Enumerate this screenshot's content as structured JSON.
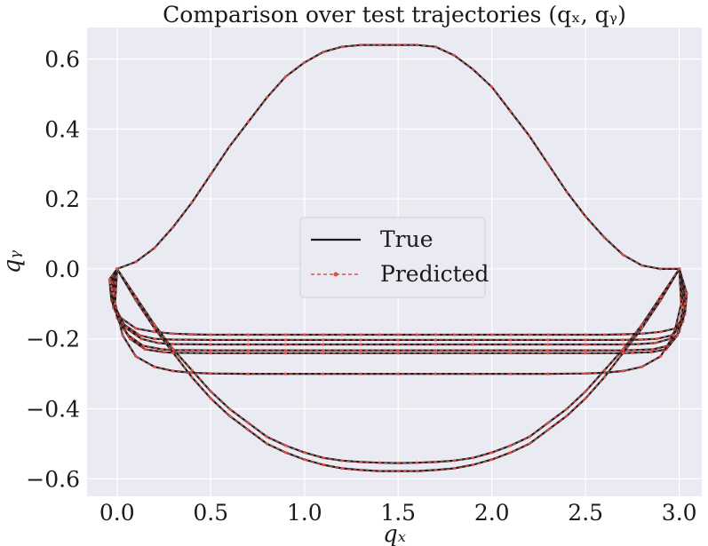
{
  "chart_data": {
    "type": "line",
    "title": "Comparison over test trajectories (qₓ, qᵧ)",
    "xlabel": "qₓ",
    "ylabel": "qᵧ",
    "xlim": [
      -0.16,
      3.12
    ],
    "ylim": [
      -0.65,
      0.69
    ],
    "xticks": [
      0.0,
      0.5,
      1.0,
      1.5,
      2.0,
      2.5,
      3.0
    ],
    "xtick_labels": [
      "0.0",
      "0.5",
      "1.0",
      "1.5",
      "2.0",
      "2.5",
      "3.0"
    ],
    "yticks": [
      0.6,
      0.4,
      0.2,
      0.0,
      -0.2,
      -0.4,
      -0.6
    ],
    "ytick_labels": [
      "0.6",
      "0.4",
      "0.2",
      "0.0",
      "−0.2",
      "−0.4",
      "−0.6"
    ],
    "grid": true,
    "legend_position": "center",
    "legend": [
      {
        "label": "True",
        "style": "solid",
        "color": "#1a1a1a"
      },
      {
        "label": "Predicted",
        "style": "dashed-marker",
        "color": "#d9534f"
      }
    ],
    "colors": {
      "background": "#eaeaf2",
      "grid": "#ffffff",
      "true": "#1a1a1a",
      "predicted": "#d9534f"
    },
    "series": [
      {
        "x": [
          0.0,
          0.1,
          0.2,
          0.3,
          0.4,
          0.5,
          0.6,
          0.7,
          0.8,
          0.9,
          1.0,
          1.1,
          1.2,
          1.3,
          1.4,
          1.5,
          1.6,
          1.7,
          1.8,
          1.9,
          2.0,
          2.1,
          2.2,
          2.3,
          2.4,
          2.5,
          2.6,
          2.7,
          2.8,
          2.9,
          3.0
        ],
        "y": [
          0.0,
          0.02,
          0.06,
          0.12,
          0.19,
          0.27,
          0.35,
          0.42,
          0.49,
          0.55,
          0.59,
          0.62,
          0.635,
          0.64,
          0.64,
          0.64,
          0.64,
          0.635,
          0.61,
          0.57,
          0.52,
          0.45,
          0.38,
          0.3,
          0.22,
          0.15,
          0.09,
          0.04,
          0.01,
          0.0,
          0.0
        ]
      },
      {
        "x": [
          0.0,
          -0.04,
          -0.03,
          0.02,
          0.1,
          0.2,
          0.3,
          0.4,
          0.5,
          0.6,
          0.7,
          0.8,
          0.9,
          1.0,
          1.1,
          1.2,
          1.3,
          1.4,
          1.5,
          1.6,
          1.7,
          1.8,
          1.9,
          2.0,
          2.1,
          2.2,
          2.3,
          2.4,
          2.5,
          2.6,
          2.7,
          2.8,
          2.9,
          2.98,
          3.03,
          3.04,
          3.0
        ],
        "y": [
          0.0,
          -0.03,
          -0.09,
          -0.14,
          -0.17,
          -0.18,
          -0.185,
          -0.187,
          -0.188,
          -0.188,
          -0.188,
          -0.188,
          -0.188,
          -0.188,
          -0.188,
          -0.188,
          -0.188,
          -0.188,
          -0.188,
          -0.188,
          -0.188,
          -0.188,
          -0.188,
          -0.188,
          -0.188,
          -0.188,
          -0.188,
          -0.188,
          -0.188,
          -0.188,
          -0.187,
          -0.185,
          -0.18,
          -0.17,
          -0.13,
          -0.07,
          0.0
        ]
      },
      {
        "x": [
          0.0,
          -0.035,
          -0.02,
          0.04,
          0.12,
          0.2,
          0.3,
          0.5,
          0.7,
          0.9,
          1.1,
          1.3,
          1.5,
          1.7,
          1.9,
          2.1,
          2.3,
          2.5,
          2.7,
          2.8,
          2.88,
          2.96,
          3.02,
          3.03,
          3.0
        ],
        "y": [
          0.0,
          -0.04,
          -0.11,
          -0.16,
          -0.19,
          -0.2,
          -0.202,
          -0.203,
          -0.203,
          -0.203,
          -0.203,
          -0.203,
          -0.203,
          -0.203,
          -0.203,
          -0.203,
          -0.203,
          -0.203,
          -0.203,
          -0.202,
          -0.2,
          -0.19,
          -0.15,
          -0.08,
          0.0
        ]
      },
      {
        "x": [
          0.0,
          -0.03,
          -0.01,
          0.05,
          0.13,
          0.22,
          0.3,
          0.5,
          0.7,
          0.9,
          1.1,
          1.3,
          1.5,
          1.7,
          1.9,
          2.1,
          2.3,
          2.5,
          2.7,
          2.78,
          2.87,
          2.95,
          3.01,
          3.03,
          3.0
        ],
        "y": [
          0.0,
          -0.05,
          -0.12,
          -0.17,
          -0.2,
          -0.212,
          -0.215,
          -0.216,
          -0.216,
          -0.216,
          -0.216,
          -0.216,
          -0.216,
          -0.216,
          -0.216,
          -0.216,
          -0.216,
          -0.216,
          -0.216,
          -0.215,
          -0.212,
          -0.2,
          -0.16,
          -0.09,
          0.0
        ]
      },
      {
        "x": [
          0.0,
          -0.025,
          0.0,
          0.06,
          0.14,
          0.24,
          0.3,
          0.5,
          0.7,
          0.9,
          1.1,
          1.3,
          1.5,
          1.7,
          1.9,
          2.1,
          2.3,
          2.5,
          2.7,
          2.76,
          2.86,
          2.94,
          3.0,
          3.03,
          3.0
        ],
        "y": [
          0.0,
          -0.06,
          -0.14,
          -0.19,
          -0.22,
          -0.23,
          -0.232,
          -0.233,
          -0.233,
          -0.233,
          -0.233,
          -0.233,
          -0.233,
          -0.233,
          -0.233,
          -0.233,
          -0.233,
          -0.233,
          -0.233,
          -0.232,
          -0.23,
          -0.22,
          -0.18,
          -0.1,
          0.0
        ]
      },
      {
        "x": [
          0.0,
          -0.02,
          0.01,
          0.07,
          0.15,
          0.25,
          0.3,
          0.5,
          0.7,
          0.9,
          1.1,
          1.3,
          1.5,
          1.7,
          1.9,
          2.1,
          2.3,
          2.5,
          2.7,
          2.75,
          2.85,
          2.93,
          2.99,
          3.02,
          3.0
        ],
        "y": [
          0.0,
          -0.07,
          -0.15,
          -0.2,
          -0.23,
          -0.238,
          -0.24,
          -0.241,
          -0.241,
          -0.241,
          -0.241,
          -0.241,
          -0.241,
          -0.241,
          -0.241,
          -0.241,
          -0.241,
          -0.241,
          -0.241,
          -0.24,
          -0.238,
          -0.23,
          -0.19,
          -0.11,
          0.0
        ]
      },
      {
        "x": [
          0.0,
          -0.01,
          0.03,
          0.1,
          0.2,
          0.3,
          0.4,
          0.5,
          0.7,
          0.9,
          1.1,
          1.3,
          1.5,
          1.7,
          1.9,
          2.1,
          2.3,
          2.5,
          2.6,
          2.7,
          2.8,
          2.9,
          2.97,
          3.01,
          3.0
        ],
        "y": [
          0.0,
          -0.1,
          -0.19,
          -0.25,
          -0.28,
          -0.292,
          -0.297,
          -0.299,
          -0.3,
          -0.3,
          -0.3,
          -0.3,
          -0.3,
          -0.3,
          -0.3,
          -0.3,
          -0.3,
          -0.299,
          -0.297,
          -0.292,
          -0.28,
          -0.25,
          -0.19,
          -0.1,
          0.0
        ]
      },
      {
        "x": [
          0.0,
          0.1,
          0.2,
          0.3,
          0.4,
          0.5,
          0.6,
          0.7,
          0.8,
          0.9,
          1.0,
          1.1,
          1.2,
          1.3,
          1.4,
          1.5,
          1.6,
          1.7,
          1.8,
          1.9,
          2.0,
          2.1,
          2.2,
          2.3,
          2.4,
          2.5,
          2.6,
          2.7,
          2.8,
          2.9,
          3.0
        ],
        "y": [
          0.0,
          -0.09,
          -0.17,
          -0.24,
          -0.31,
          -0.37,
          -0.42,
          -0.46,
          -0.5,
          -0.525,
          -0.545,
          -0.56,
          -0.57,
          -0.575,
          -0.578,
          -0.578,
          -0.578,
          -0.575,
          -0.57,
          -0.56,
          -0.545,
          -0.525,
          -0.5,
          -0.46,
          -0.42,
          -0.37,
          -0.31,
          -0.24,
          -0.17,
          -0.09,
          0.0
        ]
      },
      {
        "x": [
          0.0,
          0.1,
          0.2,
          0.3,
          0.4,
          0.5,
          0.6,
          0.7,
          0.8,
          0.9,
          1.0,
          1.1,
          1.2,
          1.3,
          1.4,
          1.5,
          1.6,
          1.7,
          1.8,
          1.9,
          2.0,
          2.1,
          2.2,
          2.3,
          2.4,
          2.5,
          2.6,
          2.7,
          2.8,
          2.9,
          3.0
        ],
        "y": [
          0.0,
          -0.08,
          -0.16,
          -0.23,
          -0.29,
          -0.35,
          -0.4,
          -0.44,
          -0.48,
          -0.505,
          -0.525,
          -0.54,
          -0.548,
          -0.552,
          -0.554,
          -0.555,
          -0.554,
          -0.552,
          -0.548,
          -0.54,
          -0.525,
          -0.505,
          -0.48,
          -0.44,
          -0.4,
          -0.35,
          -0.29,
          -0.23,
          -0.16,
          -0.08,
          0.0
        ]
      }
    ]
  }
}
